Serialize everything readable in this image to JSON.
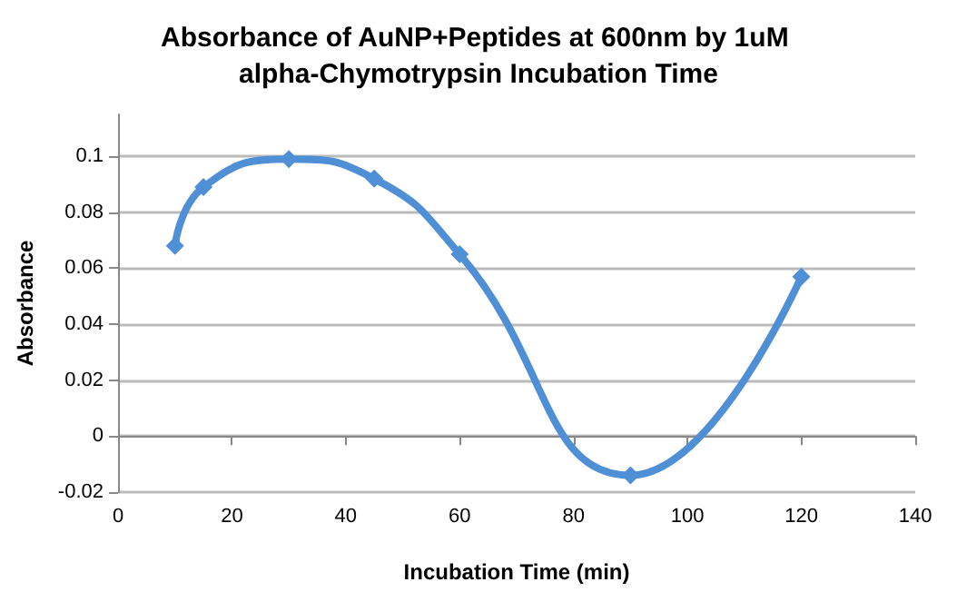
{
  "chart_data": {
    "type": "line",
    "title": "Absorbance of AuNP+Peptides at 600nm by 1uM alpha-Chymotrypsin Incubation Time",
    "xlabel": "Incubation Time (min)",
    "ylabel": "Absorbance",
    "x": [
      10,
      15,
      30,
      45,
      60,
      90,
      120
    ],
    "series": [
      {
        "color": "#4f8fd6",
        "values": [
          0.068,
          0.089,
          0.099,
          0.092,
          0.065,
          -0.014,
          0.057
        ]
      }
    ],
    "xlim": [
      0,
      140
    ],
    "xticks": [
      0,
      20,
      40,
      60,
      80,
      100,
      120,
      140
    ],
    "ylim": [
      -0.02,
      0.115
    ],
    "yticks": [
      -0.02,
      0,
      0.02,
      0.04,
      0.06,
      0.08,
      0.1
    ],
    "grid": "y",
    "marker": "diamond",
    "line_style": "solid"
  }
}
